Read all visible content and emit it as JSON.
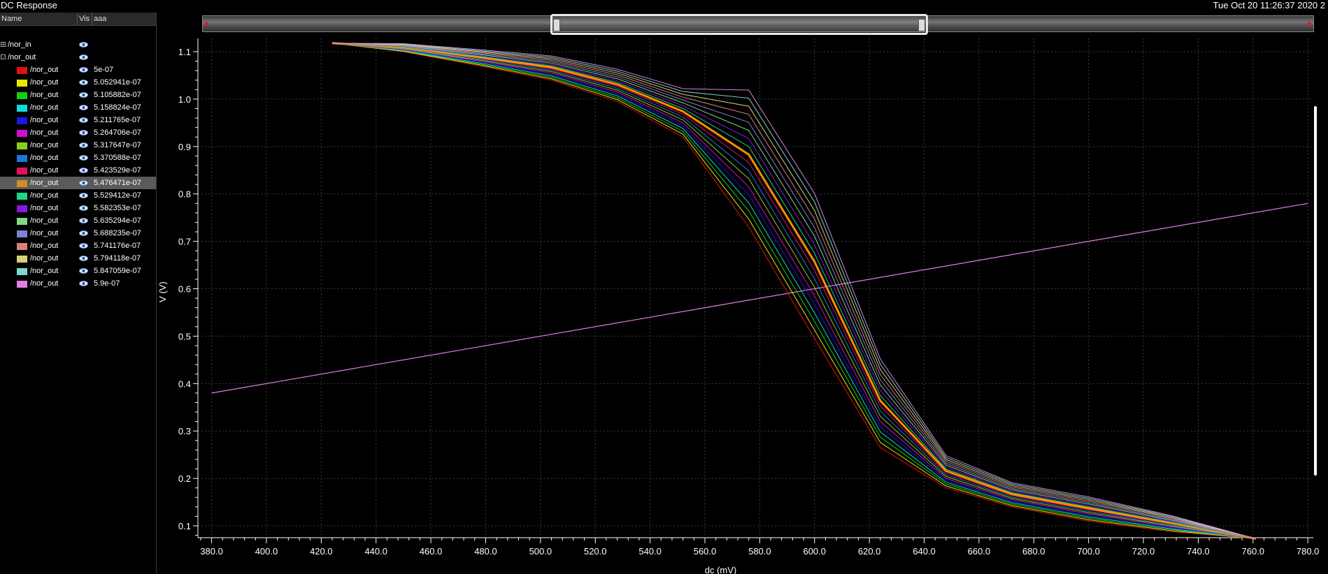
{
  "app": {
    "title": "DC Response",
    "timestamp": "Tue Oct 20 11:26:37 2020  2"
  },
  "panel": {
    "headers": {
      "name": "Name",
      "vis": "Vis",
      "aaa": "aaa"
    },
    "signals": [
      {
        "label": "/nor_in",
        "expander": "+"
      },
      {
        "label": "/nor_out",
        "expander": "-"
      }
    ],
    "selected_index": 9
  },
  "colors": {
    "background": "#000000",
    "grid": "#3c3c3c",
    "axis": "#ffffff",
    "nor_in": "#e27fe2",
    "highlight": "#ff8c00"
  },
  "chart_data": {
    "type": "line",
    "xlabel": "dc (mV)",
    "ylabel": "V (V)",
    "xlim": [
      375,
      782
    ],
    "ylim": [
      0.075,
      1.128
    ],
    "x_ticks": [
      "380.0",
      "400.0",
      "420.0",
      "440.0",
      "460.0",
      "480.0",
      "500.0",
      "520.0",
      "540.0",
      "560.0",
      "580.0",
      "600.0",
      "620.0",
      "640.0",
      "660.0",
      "680.0",
      "700.0",
      "720.0",
      "740.0",
      "760.0",
      "780.0"
    ],
    "y_ticks": [
      "0.1",
      "0.2",
      "0.3",
      "0.4",
      "0.5",
      "0.6",
      "0.7",
      "0.8",
      "0.9",
      "1.0",
      "1.1"
    ],
    "grid": true,
    "input_series": {
      "name": "/nor_in",
      "color": "#e27fe2",
      "x": [
        380,
        780
      ],
      "y": [
        0.38,
        0.78
      ]
    },
    "sweep_x": [
      424,
      450,
      478,
      504,
      528,
      552,
      576,
      600,
      624,
      648,
      672,
      700,
      730,
      761
    ],
    "series": [
      {
        "name": "/nor_out",
        "param": "5e-07",
        "color": "#e01010",
        "y": [
          1.118,
          1.1,
          1.07,
          1.04,
          0.995,
          0.92,
          0.73,
          0.495,
          0.265,
          0.18,
          0.14,
          0.11,
          0.088,
          0.073
        ]
      },
      {
        "name": "/nor_out",
        "param": "5.052941e-07",
        "color": "#e8e800",
        "y": [
          1.118,
          1.101,
          1.072,
          1.043,
          0.999,
          0.926,
          0.747,
          0.513,
          0.276,
          0.184,
          0.143,
          0.113,
          0.09,
          0.073
        ]
      },
      {
        "name": "/nor_out",
        "param": "5.105882e-07",
        "color": "#10d010",
        "y": [
          1.118,
          1.102,
          1.074,
          1.046,
          1.003,
          0.932,
          0.764,
          0.531,
          0.287,
          0.188,
          0.146,
          0.116,
          0.092,
          0.073
        ]
      },
      {
        "name": "/nor_out",
        "param": "5.158824e-07",
        "color": "#10d8d8",
        "y": [
          1.118,
          1.103,
          1.076,
          1.049,
          1.007,
          0.938,
          0.781,
          0.549,
          0.298,
          0.192,
          0.149,
          0.119,
          0.094,
          0.073
        ]
      },
      {
        "name": "/nor_out",
        "param": "5.211765e-07",
        "color": "#1818e0",
        "y": [
          1.118,
          1.104,
          1.078,
          1.052,
          1.011,
          0.944,
          0.798,
          0.567,
          0.309,
          0.196,
          0.152,
          0.122,
          0.096,
          0.073
        ]
      },
      {
        "name": "/nor_out",
        "param": "5.264706e-07",
        "color": "#d010d0",
        "y": [
          1.118,
          1.105,
          1.08,
          1.055,
          1.015,
          0.95,
          0.815,
          0.585,
          0.32,
          0.2,
          0.155,
          0.125,
          0.098,
          0.073
        ]
      },
      {
        "name": "/nor_out",
        "param": "5.317647e-07",
        "color": "#88d018",
        "y": [
          1.118,
          1.106,
          1.082,
          1.058,
          1.019,
          0.956,
          0.832,
          0.603,
          0.331,
          0.204,
          0.158,
          0.128,
          0.1,
          0.073
        ]
      },
      {
        "name": "/nor_out",
        "param": "5.370588e-07",
        "color": "#1878d8",
        "y": [
          1.118,
          1.107,
          1.084,
          1.061,
          1.023,
          0.962,
          0.849,
          0.621,
          0.342,
          0.208,
          0.161,
          0.131,
          0.102,
          0.073
        ]
      },
      {
        "name": "/nor_out",
        "param": "5.423529e-07",
        "color": "#e01060",
        "y": [
          1.118,
          1.108,
          1.086,
          1.064,
          1.027,
          0.968,
          0.866,
          0.639,
          0.353,
          0.212,
          0.164,
          0.134,
          0.104,
          0.073
        ]
      },
      {
        "name": "/nor_out",
        "param": "5.476471e-07",
        "color": "#d08c28",
        "y": [
          1.118,
          1.109,
          1.088,
          1.067,
          1.031,
          0.974,
          0.883,
          0.657,
          0.364,
          0.216,
          0.167,
          0.137,
          0.106,
          0.073
        ]
      },
      {
        "name": "/nor_out",
        "param": "5.529412e-07",
        "color": "#18d880",
        "y": [
          1.118,
          1.11,
          1.09,
          1.07,
          1.035,
          0.98,
          0.9,
          0.675,
          0.375,
          0.22,
          0.17,
          0.14,
          0.108,
          0.073
        ]
      },
      {
        "name": "/nor_out",
        "param": "5.582353e-07",
        "color": "#8818e0",
        "y": [
          1.118,
          1.111,
          1.092,
          1.073,
          1.039,
          0.986,
          0.917,
          0.693,
          0.386,
          0.224,
          0.173,
          0.143,
          0.11,
          0.073
        ]
      },
      {
        "name": "/nor_out",
        "param": "5.635294e-07",
        "color": "#80d880",
        "y": [
          1.118,
          1.112,
          1.094,
          1.076,
          1.043,
          0.992,
          0.934,
          0.711,
          0.397,
          0.228,
          0.176,
          0.146,
          0.112,
          0.073
        ]
      },
      {
        "name": "/nor_out",
        "param": "5.688235e-07",
        "color": "#8080d8",
        "y": [
          1.118,
          1.113,
          1.096,
          1.079,
          1.047,
          0.998,
          0.951,
          0.729,
          0.408,
          0.232,
          0.179,
          0.149,
          0.114,
          0.073
        ]
      },
      {
        "name": "/nor_out",
        "param": "5.741176e-07",
        "color": "#d88078",
        "y": [
          1.118,
          1.114,
          1.098,
          1.082,
          1.051,
          1.004,
          0.968,
          0.747,
          0.419,
          0.236,
          0.182,
          0.152,
          0.116,
          0.073
        ]
      },
      {
        "name": "/nor_out",
        "param": "5.794118e-07",
        "color": "#d8d080",
        "y": [
          1.118,
          1.115,
          1.1,
          1.085,
          1.055,
          1.01,
          0.985,
          0.765,
          0.43,
          0.24,
          0.185,
          0.155,
          0.118,
          0.073
        ]
      },
      {
        "name": "/nor_out",
        "param": "5.847059e-07",
        "color": "#80d8c8",
        "y": [
          1.118,
          1.116,
          1.102,
          1.088,
          1.059,
          1.016,
          1.002,
          0.783,
          0.441,
          0.244,
          0.188,
          0.158,
          0.12,
          0.073
        ]
      },
      {
        "name": "/nor_out",
        "param": "5.9e-07",
        "color": "#e080e0",
        "y": [
          1.118,
          1.117,
          1.104,
          1.091,
          1.063,
          1.022,
          1.019,
          0.801,
          0.452,
          0.248,
          0.191,
          0.161,
          0.122,
          0.073
        ]
      }
    ]
  }
}
